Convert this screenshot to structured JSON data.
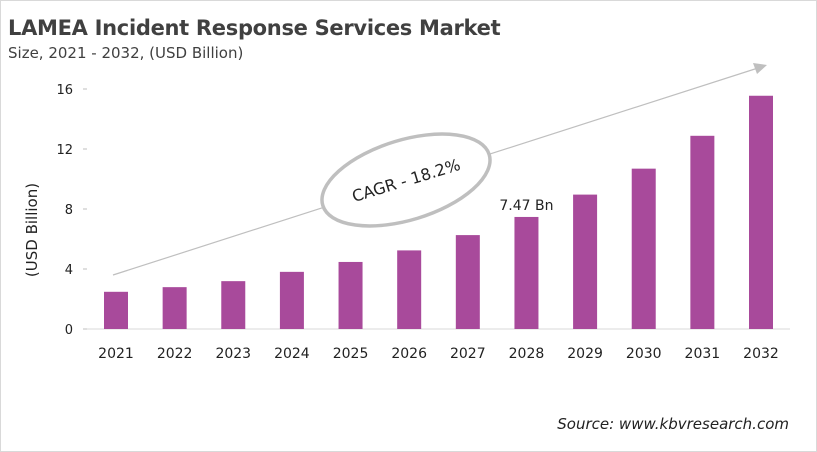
{
  "chart_data": {
    "type": "bar",
    "title": "LAMEA Incident Response Services Market",
    "subtitle": "Size, 2021 - 2032, (USD Billion)",
    "xlabel": "",
    "ylabel": "(USD Billion)",
    "categories": [
      "2021",
      "2022",
      "2023",
      "2024",
      "2025",
      "2026",
      "2027",
      "2028",
      "2029",
      "2030",
      "2031",
      "2032"
    ],
    "values": [
      2.48,
      2.79,
      3.19,
      3.81,
      4.47,
      5.24,
      6.26,
      7.47,
      8.96,
      10.69,
      12.88,
      15.55
    ],
    "ylim": [
      0,
      16
    ],
    "yticks": [
      0,
      4,
      8,
      12,
      16
    ],
    "grid": false,
    "bar_color": "#a84a9b",
    "annotations": [
      {
        "text": "7.47 Bn",
        "category": "2028"
      },
      {
        "text": "CAGR - 18.2%",
        "style": "ellipse on trend arrow"
      }
    ],
    "source": "Source: www.kbvresearch.com"
  }
}
